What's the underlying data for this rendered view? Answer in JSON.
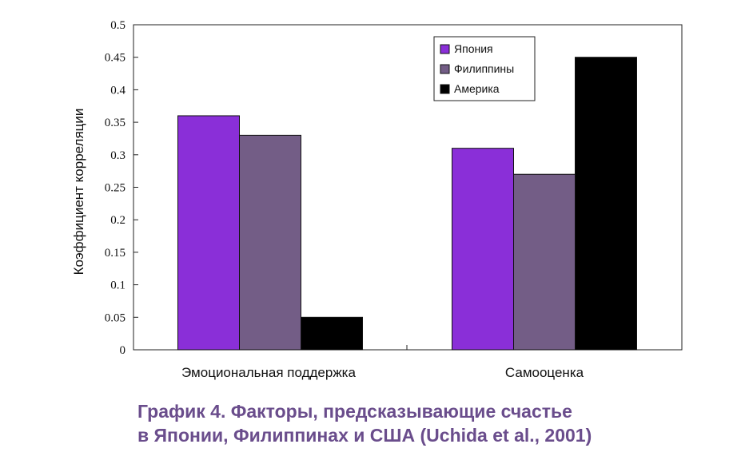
{
  "chart_data": {
    "type": "bar",
    "categories": [
      "Эмоциональная поддержка",
      "Самооценка"
    ],
    "series": [
      {
        "name": "Япония",
        "color": "#8a2fd8",
        "values": [
          0.36,
          0.31
        ]
      },
      {
        "name": "Филиппины",
        "color": "#735d86",
        "values": [
          0.33,
          0.27
        ]
      },
      {
        "name": "Америка",
        "color": "#000000",
        "values": [
          0.05,
          0.45
        ]
      }
    ],
    "ylabel": "Коэффициент корреляции",
    "ylim": [
      0,
      0.5
    ],
    "yticks": [
      "0",
      "0.05",
      "0.1",
      "0.15",
      "0.2",
      "0.25",
      "0.3",
      "0.35",
      "0.4",
      "0.45",
      "0.5"
    ],
    "legend_position": "top-right",
    "grid": false
  },
  "caption": {
    "line1": "График 4. Факторы, предсказывающие счастье",
    "line2": "в Японии, Филиппинах и США (Uchida et al., 2001)"
  }
}
